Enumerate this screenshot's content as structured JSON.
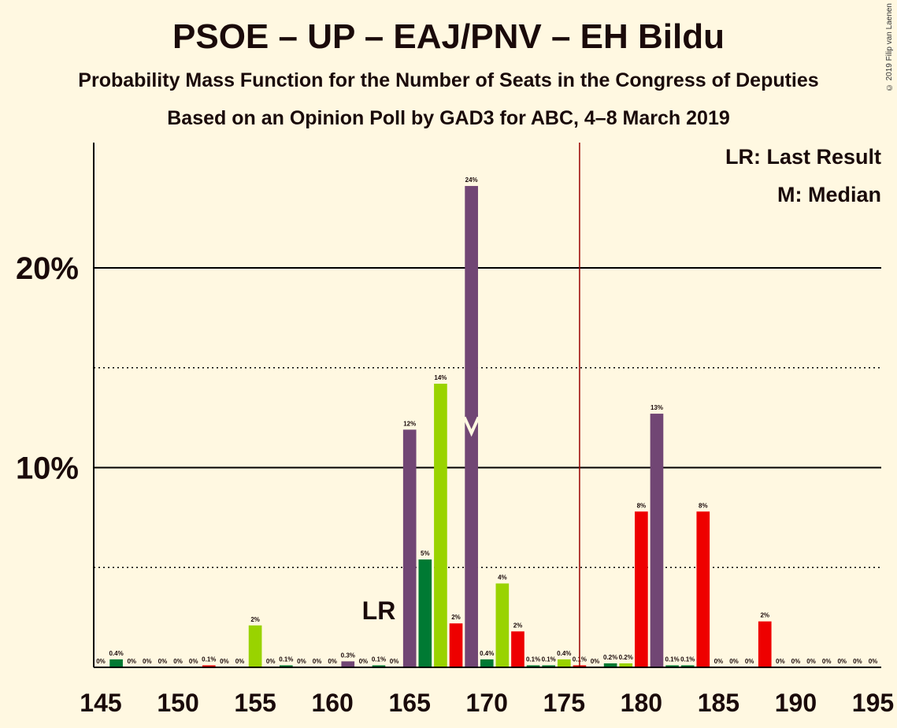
{
  "title": "PSOE – UP – EAJ/PNV – EH Bildu",
  "subtitle": "Probability Mass Function for the Number of Seats in the Congress of Deputies",
  "subtitle2": "Based on an Opinion Poll by GAD3 for ABC, 4–8 March 2019",
  "copyright": "© 2019 Filip van Laenen",
  "legend": {
    "lr": "LR: Last Result",
    "median": "M: Median"
  },
  "chart_data": {
    "type": "bar",
    "x_min": 145,
    "x_max": 195,
    "ylim": [
      0,
      26
    ],
    "xticks": [
      145,
      150,
      155,
      160,
      165,
      170,
      175,
      180,
      185,
      190,
      195
    ],
    "yticks": [
      {
        "value": 10,
        "label": "10%"
      },
      {
        "value": 20,
        "label": "20%"
      }
    ],
    "dotted_gridlines": [
      5,
      15
    ],
    "majority_line": 176,
    "last_result": {
      "seat": 163,
      "label": "LR"
    },
    "median": 169,
    "colors": {
      "purple": "#714674",
      "green": "#007A33",
      "lime": "#99D300",
      "red": "#EE0000",
      "majority": "#990000"
    },
    "bars": [
      {
        "seat": 145,
        "value": 0,
        "label": "0%",
        "color": "green"
      },
      {
        "seat": 146,
        "value": 0.4,
        "label": "0.4%",
        "color": "green"
      },
      {
        "seat": 147,
        "value": 0,
        "label": "0%",
        "color": "green"
      },
      {
        "seat": 148,
        "value": 0,
        "label": "0%",
        "color": "green"
      },
      {
        "seat": 149,
        "value": 0,
        "label": "0%",
        "color": "green"
      },
      {
        "seat": 150,
        "value": 0,
        "label": "0%",
        "color": "green"
      },
      {
        "seat": 151,
        "value": 0,
        "label": "0%",
        "color": "green"
      },
      {
        "seat": 152,
        "value": 0.1,
        "label": "0.1%",
        "color": "red"
      },
      {
        "seat": 153,
        "value": 0,
        "label": "0%",
        "color": "green"
      },
      {
        "seat": 154,
        "value": 0,
        "label": "0%",
        "color": "green"
      },
      {
        "seat": 155,
        "value": 2.1,
        "label": "2%",
        "color": "lime"
      },
      {
        "seat": 156,
        "value": 0,
        "label": "0%",
        "color": "green"
      },
      {
        "seat": 157,
        "value": 0.1,
        "label": "0.1%",
        "color": "green"
      },
      {
        "seat": 158,
        "value": 0,
        "label": "0%",
        "color": "green"
      },
      {
        "seat": 159,
        "value": 0,
        "label": "0%",
        "color": "green"
      },
      {
        "seat": 160,
        "value": 0,
        "label": "0%",
        "color": "green"
      },
      {
        "seat": 161,
        "value": 0.3,
        "label": "0.3%",
        "color": "purple"
      },
      {
        "seat": 162,
        "value": 0,
        "label": "0%",
        "color": "green"
      },
      {
        "seat": 163,
        "value": 0.1,
        "label": "0.1%",
        "color": "green"
      },
      {
        "seat": 164,
        "value": 0,
        "label": "0%",
        "color": "green"
      },
      {
        "seat": 165,
        "value": 11.9,
        "label": "12%",
        "color": "purple"
      },
      {
        "seat": 166,
        "value": 5.4,
        "label": "5%",
        "color": "green"
      },
      {
        "seat": 167,
        "value": 14.2,
        "label": "14%",
        "color": "lime"
      },
      {
        "seat": 168,
        "value": 2.2,
        "label": "2%",
        "color": "red"
      },
      {
        "seat": 169,
        "value": 24.1,
        "label": "24%",
        "color": "purple"
      },
      {
        "seat": 170,
        "value": 0.4,
        "label": "0.4%",
        "color": "green"
      },
      {
        "seat": 171,
        "value": 4.2,
        "label": "4%",
        "color": "lime"
      },
      {
        "seat": 172,
        "value": 1.8,
        "label": "2%",
        "color": "red"
      },
      {
        "seat": 173,
        "value": 0.1,
        "label": "0.1%",
        "color": "green"
      },
      {
        "seat": 174,
        "value": 0.1,
        "label": "0.1%",
        "color": "green"
      },
      {
        "seat": 175,
        "value": 0.4,
        "label": "0.4%",
        "color": "lime"
      },
      {
        "seat": 176,
        "value": 0.1,
        "label": "0.1%",
        "color": "red"
      },
      {
        "seat": 177,
        "value": 0,
        "label": "0%",
        "color": "green"
      },
      {
        "seat": 178,
        "value": 0.2,
        "label": "0.2%",
        "color": "green"
      },
      {
        "seat": 179,
        "value": 0.2,
        "label": "0.2%",
        "color": "lime"
      },
      {
        "seat": 180,
        "value": 7.8,
        "label": "8%",
        "color": "red"
      },
      {
        "seat": 181,
        "value": 12.7,
        "label": "13%",
        "color": "purple"
      },
      {
        "seat": 182,
        "value": 0.1,
        "label": "0.1%",
        "color": "green"
      },
      {
        "seat": 183,
        "value": 0.1,
        "label": "0.1%",
        "color": "green"
      },
      {
        "seat": 184,
        "value": 7.8,
        "label": "8%",
        "color": "red"
      },
      {
        "seat": 185,
        "value": 0,
        "label": "0%",
        "color": "green"
      },
      {
        "seat": 186,
        "value": 0,
        "label": "0%",
        "color": "green"
      },
      {
        "seat": 187,
        "value": 0,
        "label": "0%",
        "color": "green"
      },
      {
        "seat": 188,
        "value": 2.3,
        "label": "2%",
        "color": "red"
      },
      {
        "seat": 189,
        "value": 0,
        "label": "0%",
        "color": "green"
      },
      {
        "seat": 190,
        "value": 0,
        "label": "0%",
        "color": "green"
      },
      {
        "seat": 191,
        "value": 0,
        "label": "0%",
        "color": "green"
      },
      {
        "seat": 192,
        "value": 0,
        "label": "0%",
        "color": "green"
      },
      {
        "seat": 193,
        "value": 0,
        "label": "0%",
        "color": "green"
      },
      {
        "seat": 194,
        "value": 0,
        "label": "0%",
        "color": "green"
      },
      {
        "seat": 195,
        "value": 0,
        "label": "0%",
        "color": "green"
      }
    ]
  }
}
